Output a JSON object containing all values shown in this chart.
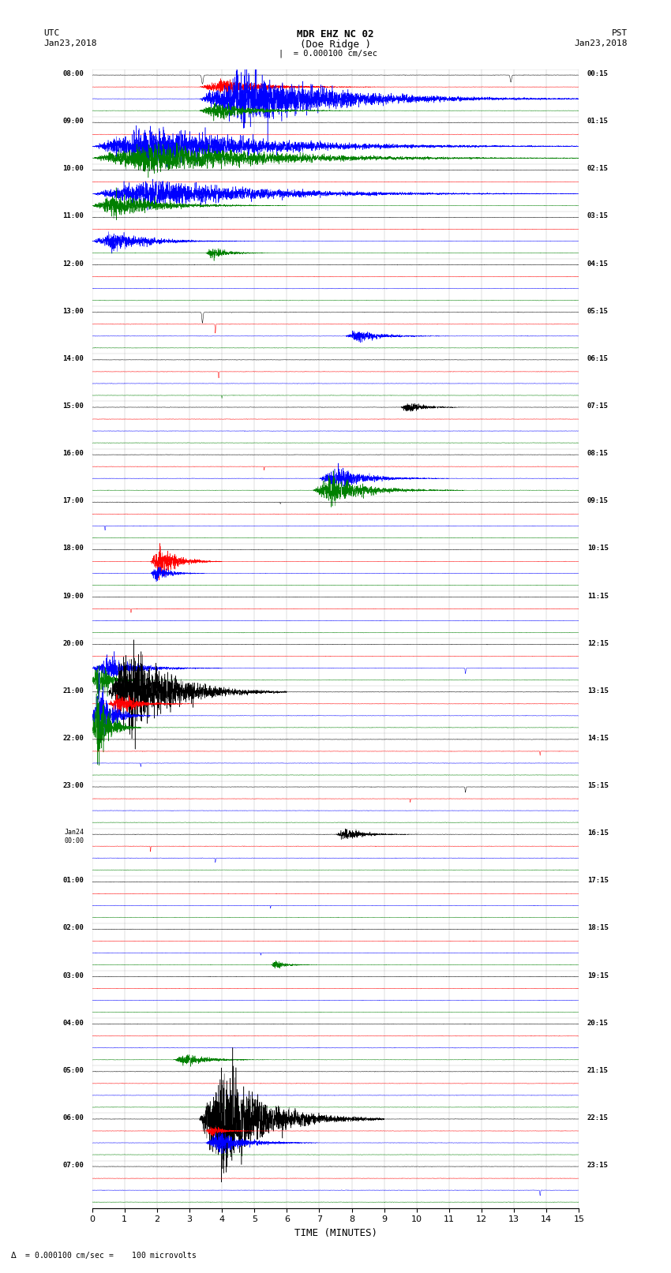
{
  "title_line1": "MDR EHZ NC 02",
  "title_line2": "(Doe Ridge )",
  "scale_label": "= 0.000100 cm/sec",
  "bottom_label": "= 0.000100 cm/sec =    100 microvolts",
  "xlabel": "TIME (MINUTES)",
  "xlim": [
    0,
    15
  ],
  "xticks": [
    0,
    1,
    2,
    3,
    4,
    5,
    6,
    7,
    8,
    9,
    10,
    11,
    12,
    13,
    14,
    15
  ],
  "colors": [
    "black",
    "red",
    "blue",
    "green"
  ],
  "utc_labels": [
    "08:00",
    "09:00",
    "10:00",
    "11:00",
    "12:00",
    "13:00",
    "14:00",
    "15:00",
    "16:00",
    "17:00",
    "18:00",
    "19:00",
    "20:00",
    "21:00",
    "22:00",
    "23:00",
    "Jan24\n00:00",
    "01:00",
    "02:00",
    "03:00",
    "04:00",
    "05:00",
    "06:00",
    "07:00"
  ],
  "pst_labels": [
    "00:15",
    "01:15",
    "02:15",
    "03:15",
    "04:15",
    "05:15",
    "06:15",
    "07:15",
    "08:15",
    "09:15",
    "10:15",
    "11:15",
    "12:15",
    "13:15",
    "14:15",
    "15:15",
    "16:15",
    "17:15",
    "18:15",
    "19:15",
    "20:15",
    "21:15",
    "22:15",
    "23:15"
  ],
  "bg_color": "#ffffff",
  "grid_color": "#888888",
  "seed": 42
}
